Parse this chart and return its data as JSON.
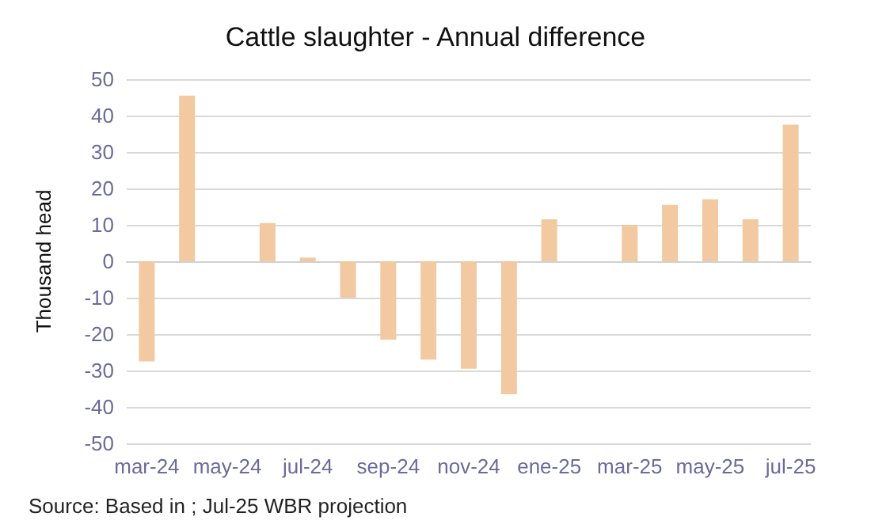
{
  "chart_data": {
    "type": "bar",
    "title": "Cattle slaughter - Annual difference",
    "ylabel": "Thousand head",
    "categories": [
      "mar-24",
      null,
      "may-24",
      null,
      "jul-24",
      null,
      "sep-24",
      null,
      "nov-24",
      null,
      "ene-25",
      null,
      "mar-25",
      null,
      "may-25",
      null,
      "jul-25"
    ],
    "values": [
      -27.5,
      45.5,
      null,
      10.5,
      1,
      -10,
      -21.5,
      -27,
      -29.5,
      -36.5,
      11.5,
      null,
      10,
      15.5,
      17,
      11.5,
      37.5
    ],
    "color": "#f2c9a0",
    "ylim": [
      -50,
      50
    ],
    "yticks": [
      -50,
      -40,
      -30,
      -20,
      -10,
      0,
      10,
      20,
      30,
      40,
      50
    ],
    "grid": "y",
    "annotations": [
      "Source: Based in ; Jul-25 WBR projection"
    ]
  }
}
